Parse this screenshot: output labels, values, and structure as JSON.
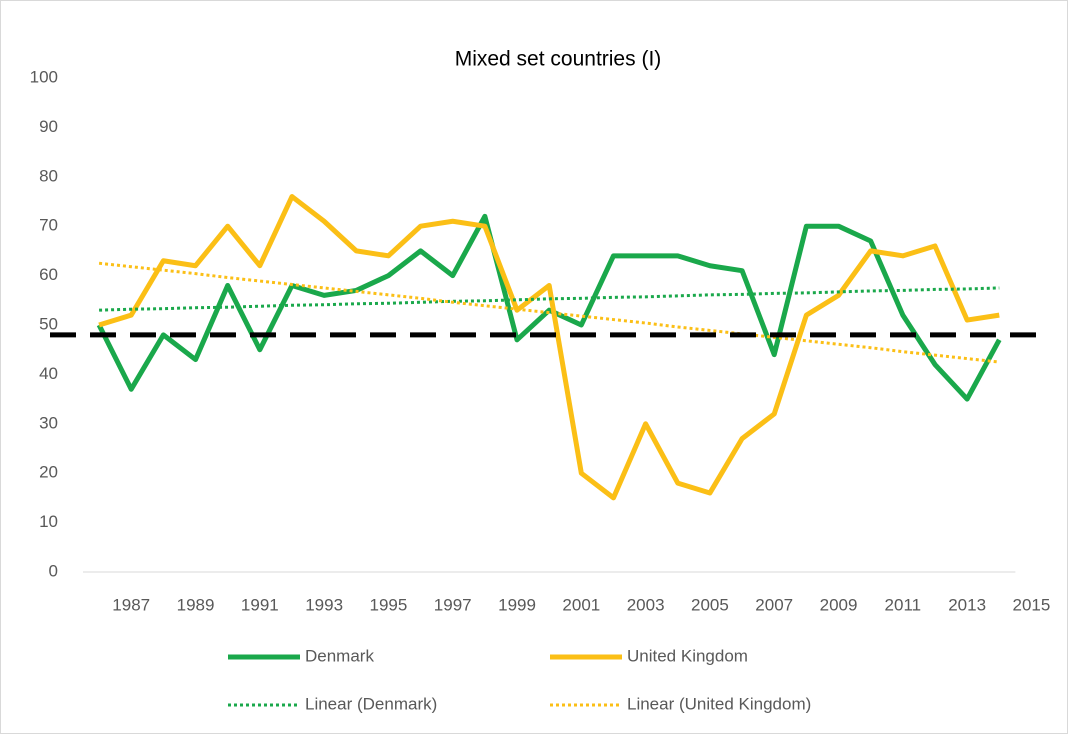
{
  "chart_data": {
    "type": "line",
    "title": "Mixed set countries (I)",
    "categories": [
      null,
      "1987",
      null,
      "1989",
      null,
      "1991",
      null,
      "1993",
      null,
      "1995",
      null,
      "1997",
      null,
      "1999",
      null,
      "2001",
      null,
      "2003",
      null,
      "2005",
      null,
      "2007",
      null,
      "2009",
      null,
      "2011",
      null,
      "2013",
      null,
      "2015"
    ],
    "series": [
      {
        "name": "Denmark",
        "color": "#1aa84b",
        "style": "solid",
        "values": [
          50,
          37,
          48,
          43,
          58,
          45,
          58,
          56,
          57,
          60,
          65,
          60,
          72,
          47,
          53,
          50,
          64,
          64,
          64,
          62,
          61,
          44,
          70,
          70,
          67,
          52,
          42,
          35,
          47,
          null
        ]
      },
      {
        "name": "United Kingdom",
        "color": "#fbbf16",
        "style": "solid",
        "values": [
          50,
          52,
          63,
          62,
          70,
          62,
          76,
          71,
          65,
          64,
          70,
          71,
          70,
          53,
          58,
          20,
          15,
          30,
          18,
          16,
          27,
          32,
          52,
          56,
          65,
          64,
          66,
          51,
          52,
          null
        ]
      },
      {
        "name": "Linear (Denmark)",
        "color": "#1aa84b",
        "style": "dotted",
        "values": [
          53.0,
          53.2,
          53.3,
          53.5,
          53.6,
          53.8,
          54.0,
          54.1,
          54.3,
          54.4,
          54.6,
          54.8,
          54.9,
          55.1,
          55.3,
          55.4,
          55.6,
          55.7,
          55.9,
          56.1,
          56.2,
          56.4,
          56.5,
          56.7,
          56.9,
          57.0,
          57.2,
          57.3,
          57.5,
          null
        ]
      },
      {
        "name": "Linear (United Kingdom)",
        "color": "#fbbf16",
        "style": "dotted",
        "values": [
          62.5,
          61.8,
          61.1,
          60.4,
          59.6,
          58.9,
          58.2,
          57.5,
          56.8,
          56.1,
          55.4,
          54.6,
          53.9,
          53.2,
          52.5,
          51.8,
          51.1,
          50.4,
          49.6,
          48.9,
          48.2,
          47.5,
          46.8,
          46.1,
          45.4,
          44.6,
          43.9,
          43.2,
          42.5,
          null
        ]
      }
    ],
    "reference_line": 48,
    "ylim": [
      0,
      100
    ],
    "yticks": [
      0,
      10,
      20,
      30,
      40,
      50,
      60,
      70,
      80,
      90,
      100
    ],
    "grid": false,
    "legend": "bottom"
  }
}
